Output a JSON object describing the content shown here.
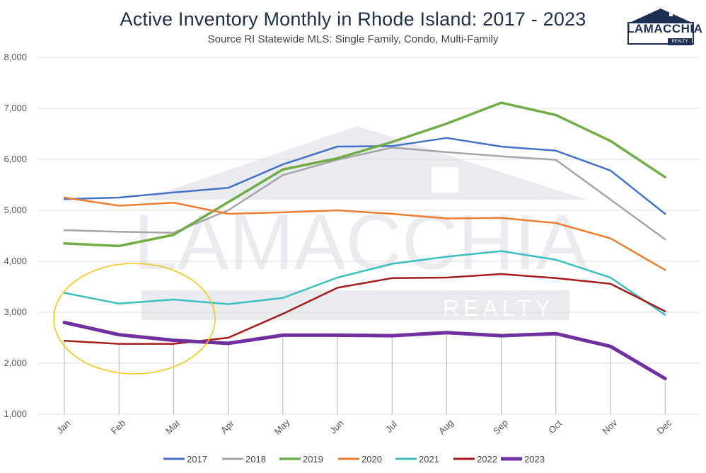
{
  "header": {
    "title": "Active Inventory Monthly in Rhode Island: 2017 - 2023",
    "subtitle": "Source RI Statewide MLS: Single Family, Condo, Multi-Family"
  },
  "logo": {
    "text": "LAMACCHIA",
    "sub": "REALTY"
  },
  "watermark": {
    "text": "LAMACCHIA",
    "sub": "REALTY"
  },
  "chart_data": {
    "type": "line",
    "title": "Active Inventory Monthly in Rhode Island: 2017 - 2023",
    "subtitle": "Source RI Statewide MLS: Single Family, Condo, Multi-Family",
    "categories": [
      "Jan",
      "Feb",
      "Mar",
      "Apr",
      "May",
      "Jun",
      "Jul",
      "Aug",
      "Sep",
      "Oct",
      "Nov",
      "Dec"
    ],
    "ylim": [
      1000,
      8000
    ],
    "yticks": [
      "1,000",
      "2,000",
      "3,000",
      "4,000",
      "5,000",
      "6,000",
      "7,000",
      "8,000"
    ],
    "grid": true,
    "legend": "bottom",
    "series": [
      {
        "name": "2017",
        "color": "#4472c4",
        "width": 2.5,
        "values": [
          5220,
          5250,
          5350,
          5440,
          5900,
          6250,
          6260,
          6420,
          6250,
          6170,
          5780,
          4930
        ]
      },
      {
        "name": "2018",
        "color": "#a5a5a5",
        "width": 2.5,
        "values": [
          4610,
          4580,
          4560,
          5000,
          5690,
          5990,
          6230,
          6140,
          6060,
          5990,
          5210,
          4430
        ]
      },
      {
        "name": "2019",
        "color": "#70ad47",
        "width": 3.5,
        "values": [
          4350,
          4300,
          4520,
          5160,
          5800,
          6020,
          6340,
          6700,
          7110,
          6870,
          6360,
          5650
        ]
      },
      {
        "name": "2020",
        "color": "#ed7d31",
        "width": 2.5,
        "values": [
          5250,
          5090,
          5150,
          4930,
          4960,
          5000,
          4930,
          4840,
          4850,
          4750,
          4450,
          3830
        ]
      },
      {
        "name": "2021",
        "color": "#3bbfbf",
        "width": 2.5,
        "values": [
          3380,
          3170,
          3250,
          3160,
          3280,
          3680,
          3950,
          4090,
          4200,
          4030,
          3680,
          2950
        ]
      },
      {
        "name": "2022",
        "color": "#a51c1c",
        "width": 2.5,
        "values": [
          2440,
          2380,
          2380,
          2500,
          2970,
          3480,
          3670,
          3680,
          3750,
          3670,
          3560,
          3020
        ]
      },
      {
        "name": "2023",
        "color": "#7030a0",
        "width": 5,
        "values": [
          2800,
          2560,
          2450,
          2390,
          2550,
          2550,
          2540,
          2600,
          2540,
          2580,
          2330,
          1700
        ]
      }
    ],
    "annotation": {
      "shape": "ellipse",
      "color": "#f2c81f",
      "around": [
        "Jan",
        "Feb",
        "Mar"
      ]
    }
  }
}
